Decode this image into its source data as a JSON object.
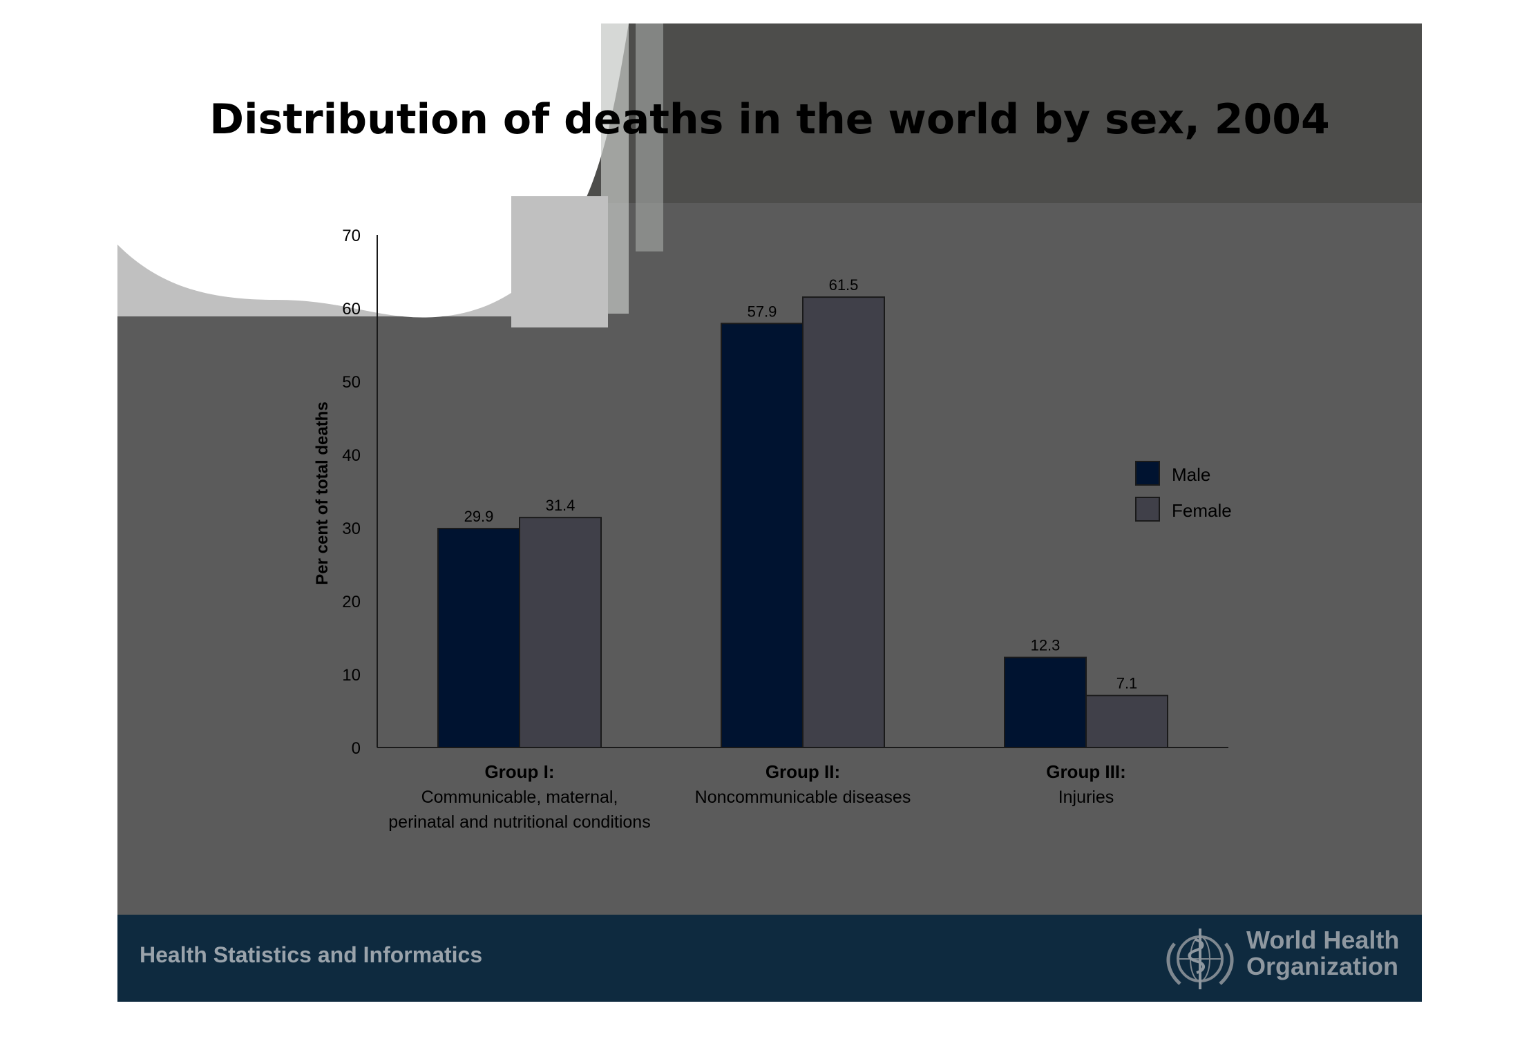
{
  "slide": {
    "title": "Distribution of deaths in the world by sex, 2004",
    "footer_text": "Health Statistics and Informatics",
    "org_name_line1": "World Health",
    "org_name_line2": "Organization",
    "colors": {
      "background": "#5b5b5b",
      "footer": "#0e2a3f",
      "male": "#001330",
      "female": "#404049"
    }
  },
  "chart_data": {
    "type": "bar",
    "title": "Distribution of deaths in the world by sex, 2004",
    "ylabel": "Per cent of total deaths",
    "xlabel": "",
    "ylim": [
      0,
      70
    ],
    "yticks": [
      0,
      10,
      20,
      30,
      40,
      50,
      60,
      70
    ],
    "categories": [
      {
        "heading": "Group I:",
        "desc_lines": [
          "Communicable, maternal,",
          "perinatal and nutritional conditions"
        ]
      },
      {
        "heading": "Group II:",
        "desc_lines": [
          "Noncommunicable diseases"
        ]
      },
      {
        "heading": "Group III:",
        "desc_lines": [
          "Injuries"
        ]
      }
    ],
    "series": [
      {
        "name": "Male",
        "color": "#001330",
        "values": [
          29.9,
          57.9,
          12.3
        ],
        "labels": [
          "29.9",
          "57.9",
          "12.3"
        ]
      },
      {
        "name": "Female",
        "color": "#404049",
        "values": [
          31.4,
          61.5,
          7.1
        ],
        "labels": [
          "31.4",
          "61.5",
          "7.1"
        ]
      }
    ],
    "legend_position": "right",
    "grid": false
  }
}
